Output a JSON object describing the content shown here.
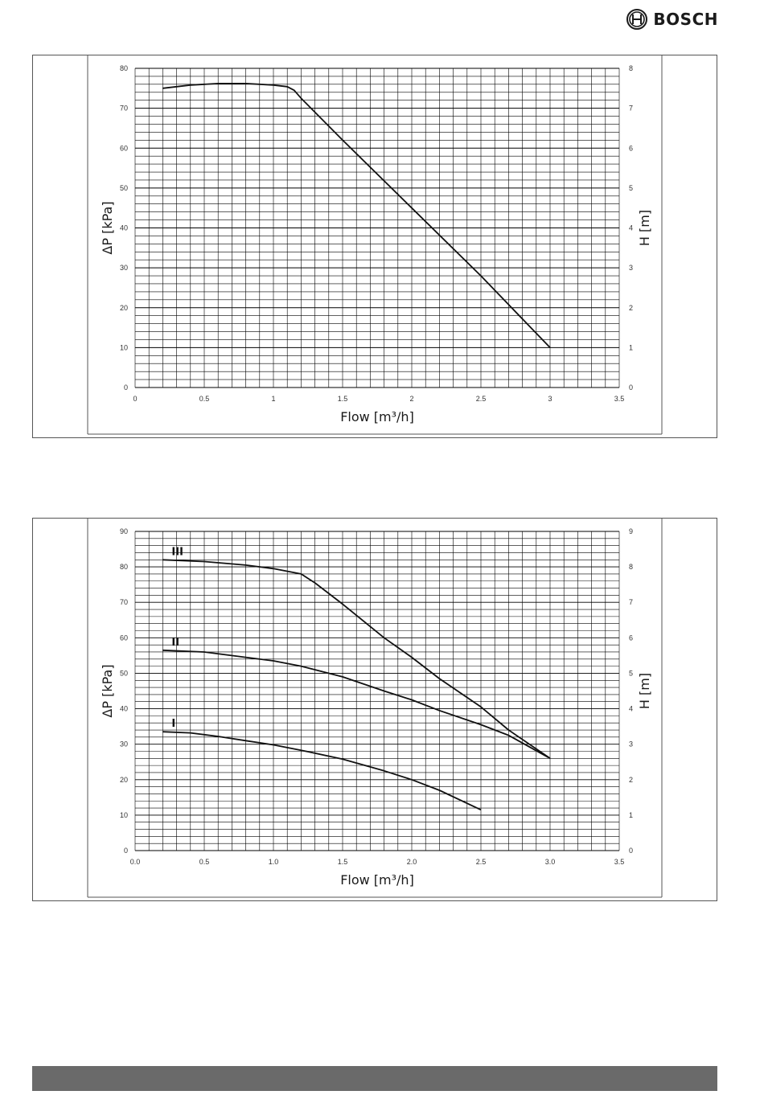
{
  "brand": {
    "name": "BOSCH",
    "logo_icon": "bosch-armature-icon"
  },
  "chart_data": [
    {
      "type": "line",
      "xlabel": "Flow [m³/h]",
      "ylabel": "ΔP [kPa]",
      "y2label": "H [m]",
      "xlim": [
        0,
        3.5
      ],
      "ylim": [
        0,
        80
      ],
      "y2lim": [
        0,
        8
      ],
      "x_ticks": [
        "0",
        "0.5",
        "1",
        "1.5",
        "2",
        "2.5",
        "3",
        "3.5"
      ],
      "y_ticks": [
        "0",
        "10",
        "20",
        "30",
        "40",
        "50",
        "60",
        "70",
        "80"
      ],
      "y2_ticks": [
        "0",
        "1",
        "2",
        "3",
        "4",
        "5",
        "6",
        "7",
        "8"
      ],
      "grid": true,
      "series": [
        {
          "x": [
            0.2,
            0.4,
            0.6,
            0.8,
            1.0,
            1.1,
            1.15,
            1.2,
            1.5,
            2.0,
            2.5,
            3.0
          ],
          "y": [
            75,
            75.8,
            76.2,
            76.2,
            75.8,
            75.4,
            74.5,
            72.5,
            62,
            45,
            28,
            10
          ]
        }
      ]
    },
    {
      "type": "line",
      "xlabel": "Flow [m³/h]",
      "ylabel": "ΔP [kPa]",
      "y2label": "H [m]",
      "xlim": [
        0,
        3.5
      ],
      "ylim": [
        0,
        90
      ],
      "y2lim": [
        0,
        9
      ],
      "x_ticks": [
        "0.0",
        "0.5",
        "1.0",
        "1.5",
        "2.0",
        "2.5",
        "3.0",
        "3.5"
      ],
      "y_ticks": [
        "0",
        "10",
        "20",
        "30",
        "40",
        "50",
        "60",
        "70",
        "80",
        "90"
      ],
      "y2_ticks": [
        "0",
        "1",
        "2",
        "3",
        "4",
        "5",
        "6",
        "7",
        "8",
        "9"
      ],
      "grid": true,
      "series": [
        {
          "name": "III",
          "x": [
            0.2,
            0.5,
            0.8,
            1.0,
            1.2,
            1.3,
            1.5,
            1.8,
            2.0,
            2.2,
            2.5,
            2.7,
            3.0
          ],
          "y": [
            82,
            81.5,
            80.5,
            79.5,
            78,
            75.5,
            69.5,
            60,
            54.5,
            48.5,
            40.5,
            34,
            26
          ]
        },
        {
          "name": "II",
          "x": [
            0.2,
            0.5,
            0.8,
            1.0,
            1.2,
            1.5,
            1.8,
            2.0,
            2.2,
            2.5,
            2.7,
            3.0
          ],
          "y": [
            56.5,
            56,
            54.5,
            53.5,
            52,
            49,
            45,
            42.5,
            39.5,
            35.5,
            32.5,
            26
          ]
        },
        {
          "name": "I",
          "x": [
            0.2,
            0.4,
            0.6,
            0.8,
            1.0,
            1.2,
            1.5,
            1.8,
            2.0,
            2.2,
            2.5
          ],
          "y": [
            33.5,
            33.2,
            32.2,
            31,
            29.8,
            28.3,
            25.8,
            22.5,
            20,
            17,
            11.5
          ]
        }
      ]
    }
  ]
}
